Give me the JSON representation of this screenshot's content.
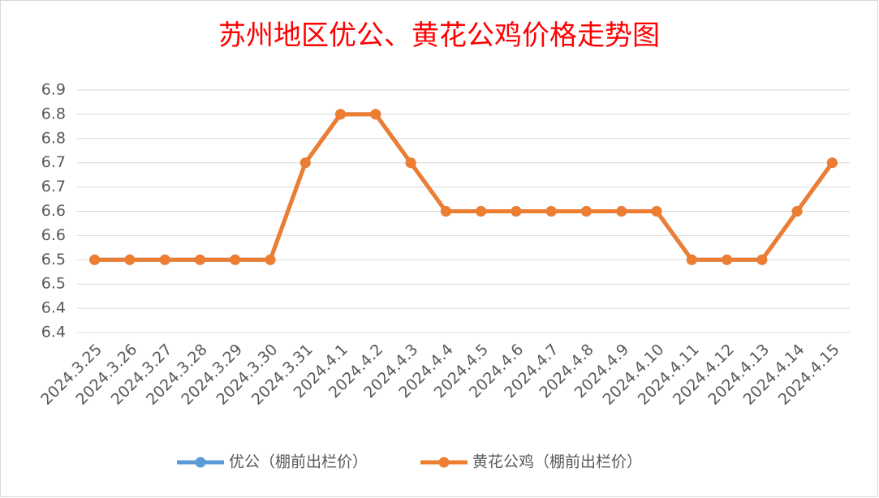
{
  "chart_data": {
    "type": "line",
    "title": "苏州地区优公、黄花公鸡价格走势图",
    "categories": [
      "2024.3.25",
      "2024.3.26",
      "2024.3.27",
      "2024.3.28",
      "2024.3.29",
      "2024.3.30",
      "2024.3.31",
      "2024.4.1",
      "2024.4.2",
      "2024.4.3",
      "2024.4.4",
      "2024.4.5",
      "2024.4.6",
      "2024.4.7",
      "2024.4.8",
      "2024.4.9",
      "2024.4.10",
      "2024.4.11",
      "2024.4.12",
      "2024.4.13",
      "2024.4.14",
      "2024.4.15"
    ],
    "series": [
      {
        "name": "优公（棚前出栏价）",
        "color": "#5b9bd5",
        "values": [
          6.5,
          6.5,
          6.5,
          6.5,
          6.5,
          6.5,
          6.7,
          6.8,
          6.8,
          6.7,
          6.6,
          6.6,
          6.6,
          6.6,
          6.6,
          6.6,
          6.6,
          6.5,
          6.5,
          6.5,
          6.6,
          6.7
        ]
      },
      {
        "name": "黄花公鸡（棚前出栏价）",
        "color": "#ed7d31",
        "values": [
          6.5,
          6.5,
          6.5,
          6.5,
          6.5,
          6.5,
          6.7,
          6.8,
          6.8,
          6.7,
          6.6,
          6.6,
          6.6,
          6.6,
          6.6,
          6.6,
          6.6,
          6.5,
          6.5,
          6.5,
          6.6,
          6.7
        ]
      }
    ],
    "ylim": [
      6.35,
      6.85
    ],
    "yticks": [
      {
        "value": 6.35,
        "label": "6.4"
      },
      6.4,
      {
        "value": 6.45,
        "label": "6.5"
      },
      6.5,
      {
        "value": 6.55,
        "label": "6.6"
      },
      6.6,
      {
        "value": 6.65,
        "label": "6.7"
      },
      6.7,
      {
        "value": 6.75,
        "label": "6.8"
      },
      6.8,
      {
        "value": 6.85,
        "label": "6.9"
      }
    ],
    "grid": true,
    "legend": "bottom"
  }
}
